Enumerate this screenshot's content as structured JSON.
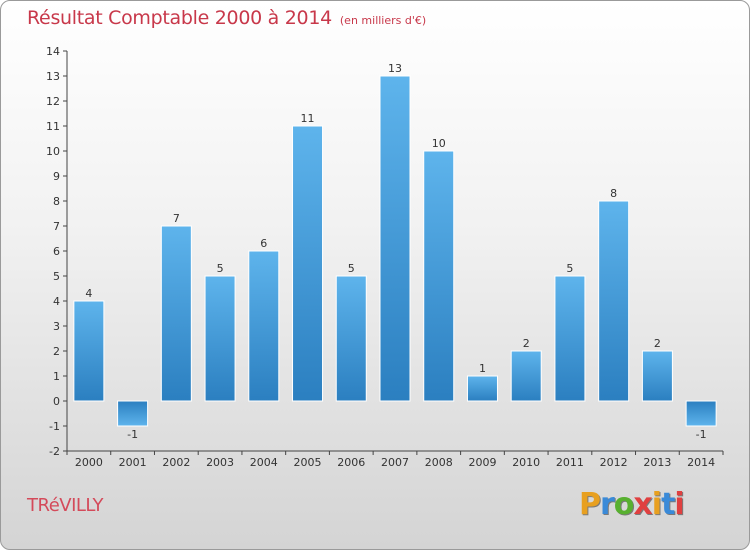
{
  "title": "Résultat Comptable 2000 à 2014",
  "unit": "(en milliers d'€)",
  "commune": "TRéVILLY",
  "brand": {
    "text": "Proxiti",
    "letters": [
      "P",
      "r",
      "o",
      "x",
      "i",
      "t",
      "i"
    ],
    "colors": [
      "#e8a020",
      "#3a8ad8",
      "#58b030",
      "#e04040",
      "#e8a020",
      "#3a8ad8",
      "#e04040"
    ]
  },
  "colors": {
    "title": "#c8384a",
    "bar_light": "#5eb4ec",
    "bar_dark": "#2b7fc0",
    "axis": "#444444"
  },
  "chart_data": {
    "type": "bar",
    "title": "Résultat Comptable 2000 à 2014",
    "ylabel": "(en milliers d'€)",
    "xlabel": "",
    "categories": [
      "2000",
      "2001",
      "2002",
      "2003",
      "2004",
      "2005",
      "2006",
      "2007",
      "2008",
      "2009",
      "2010",
      "2011",
      "2012",
      "2013",
      "2014"
    ],
    "values": [
      4,
      -1,
      7,
      5,
      6,
      11,
      5,
      13,
      10,
      1,
      2,
      5,
      8,
      2,
      -1
    ],
    "ylim": [
      -2,
      14
    ],
    "yticks": [
      "-2",
      "-1",
      "0",
      "1",
      "2",
      "3",
      "4",
      "5",
      "6",
      "7",
      "8",
      "9",
      "10",
      "11",
      "12",
      "13",
      "14"
    ],
    "grid": false
  }
}
